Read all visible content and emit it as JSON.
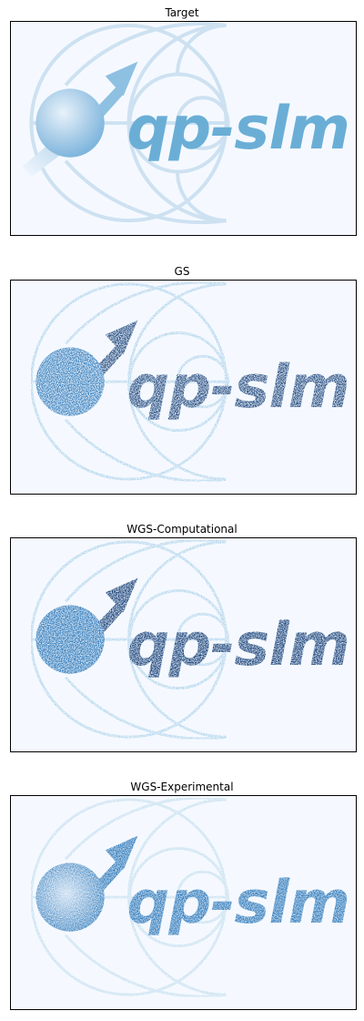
{
  "panels": [
    {
      "title": "Target",
      "variant": "target"
    },
    {
      "title": "GS",
      "variant": "gs"
    },
    {
      "title": "WGS-Computational",
      "variant": "wgs-comp"
    },
    {
      "title": "WGS-Experimental",
      "variant": "wgs-exp"
    }
  ],
  "logo_text": "qp-slm",
  "colors": {
    "background": "#f5f9ff",
    "target_light": "#cde1f1",
    "target_medium": "#6aaed6",
    "dark_blue": "#08306b",
    "mid_blue": "#2171b5"
  }
}
